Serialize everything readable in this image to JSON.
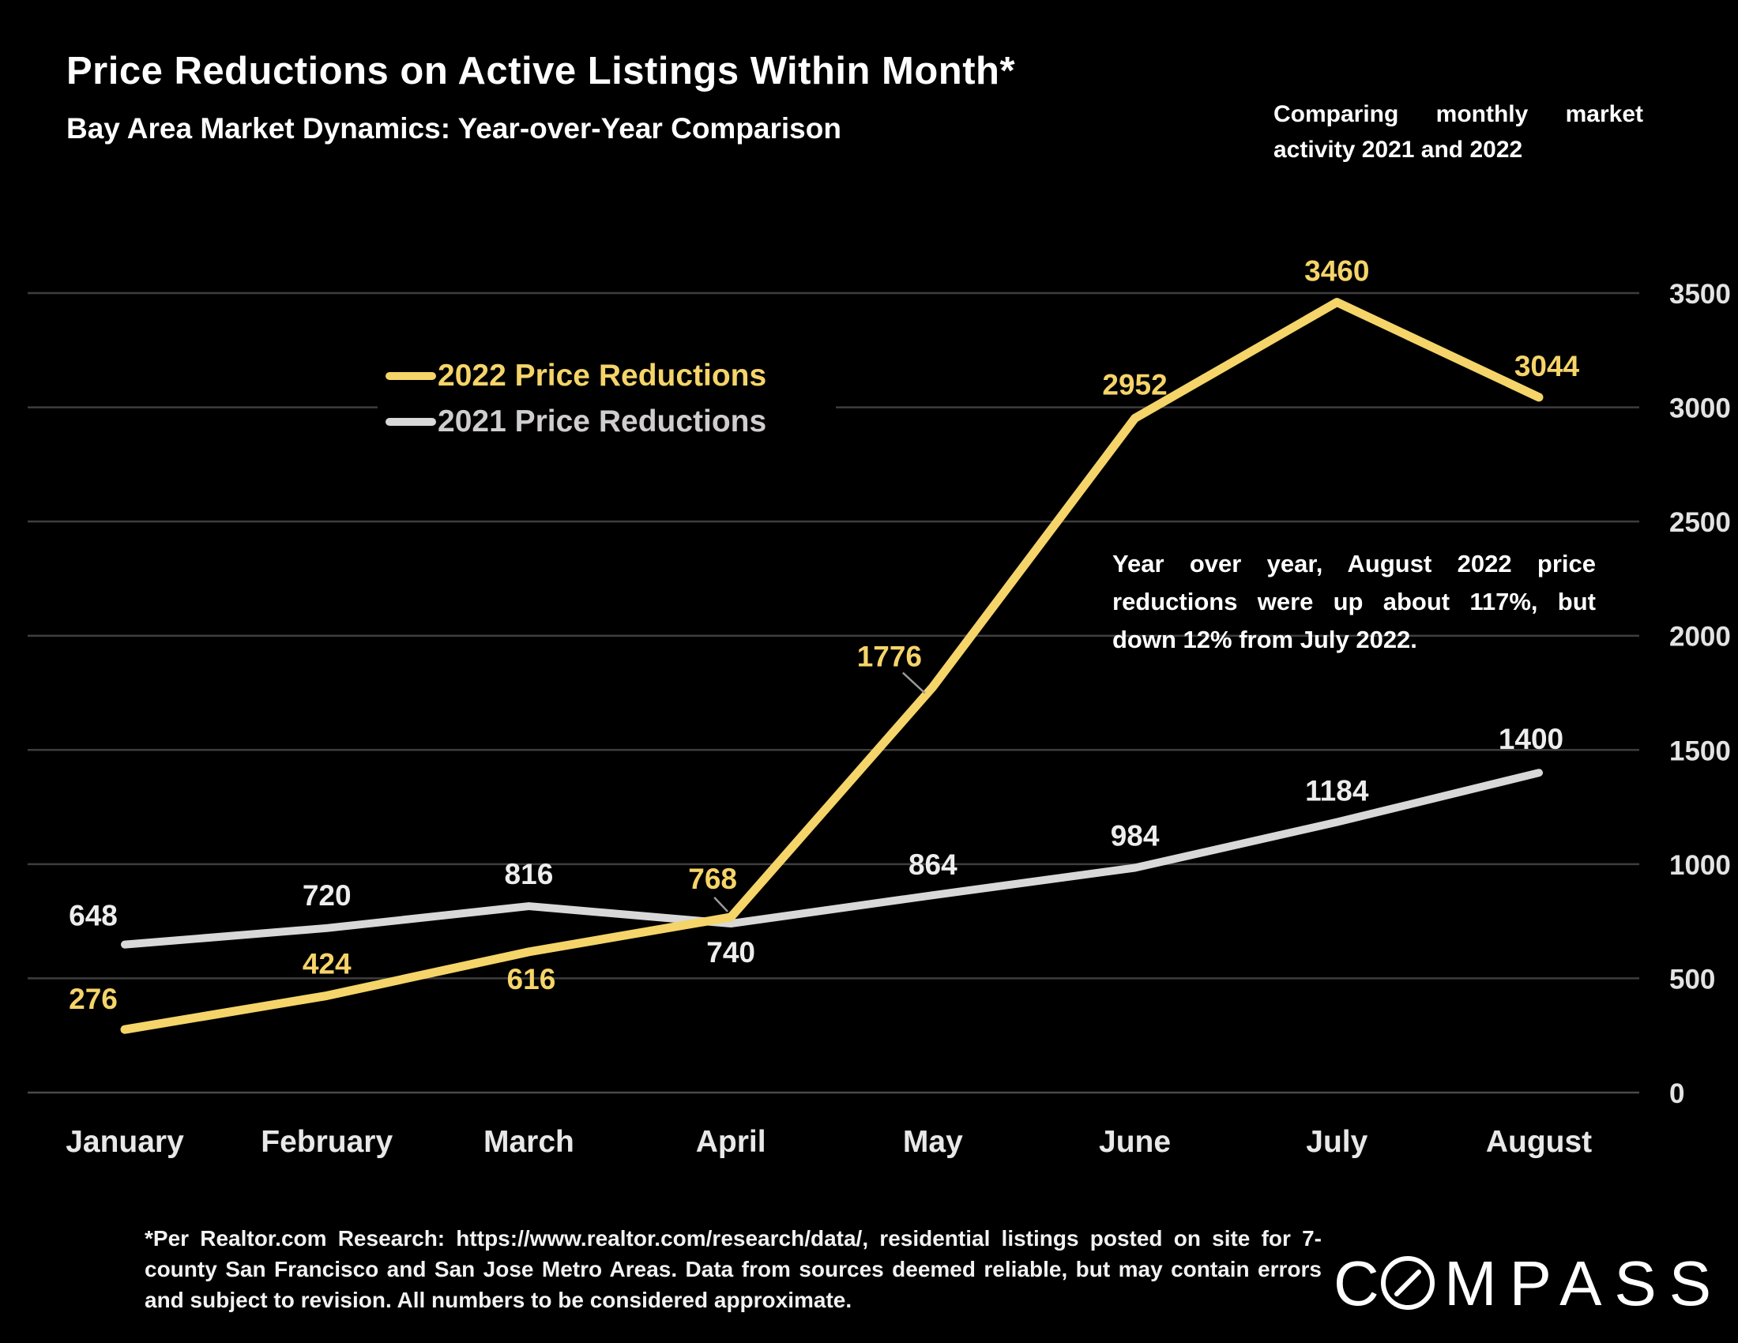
{
  "header": {
    "title": "Price Reductions on Active Listings Within Month*",
    "subtitle": "Bay Area Market Dynamics: Year-over-Year Comparison",
    "note": "Comparing monthly market activity 2021 and 2022"
  },
  "legend": {
    "items": [
      {
        "label": "2022 Price Reductions",
        "color": "#F5D469",
        "text_color": "#F5D469"
      },
      {
        "label": "2021 Price Reductions",
        "color": "#D8D8D8",
        "text_color": "#CFCDCD"
      }
    ]
  },
  "annotation": {
    "text": "Year over year, August 2022 price reductions were up about 117%, but down 12% from July 2022."
  },
  "chart_data": {
    "type": "line",
    "categories": [
      "January",
      "February",
      "March",
      "April",
      "May",
      "June",
      "July",
      "August"
    ],
    "series": [
      {
        "name": "2022 Price Reductions",
        "values": [
          276,
          424,
          616,
          768,
          1776,
          2952,
          3460,
          3044
        ],
        "color": "#F5D469",
        "label_color": "#F5D469"
      },
      {
        "name": "2021 Price Reductions",
        "values": [
          648,
          720,
          816,
          740,
          864,
          984,
          1184,
          1400
        ],
        "color": "#D8D8D8",
        "label_color": "#EDEDED"
      }
    ],
    "ylim": [
      0,
      3500
    ],
    "yticks": [
      3500,
      3000,
      2500,
      2000,
      1500,
      1000,
      500,
      0
    ],
    "grid": true,
    "gridline_color": "#3E3E3E",
    "axis_line_color": "#4A4A4A",
    "tick_label_color": "#E3E3E3",
    "month_label_color": "#E8E8E8",
    "legend_position": "upper-left-inside",
    "background": "#000000"
  },
  "footer": {
    "disclaimer": "*Per Realtor.com Research:  https://www.realtor.com/research/data/, residential listings posted on site for 7-county San Francisco and San Jose Metro Areas. Data from sources deemed reliable, but may contain errors and subject to revision. All numbers to be considered approximate."
  },
  "logo": {
    "text": "COMPASS"
  }
}
